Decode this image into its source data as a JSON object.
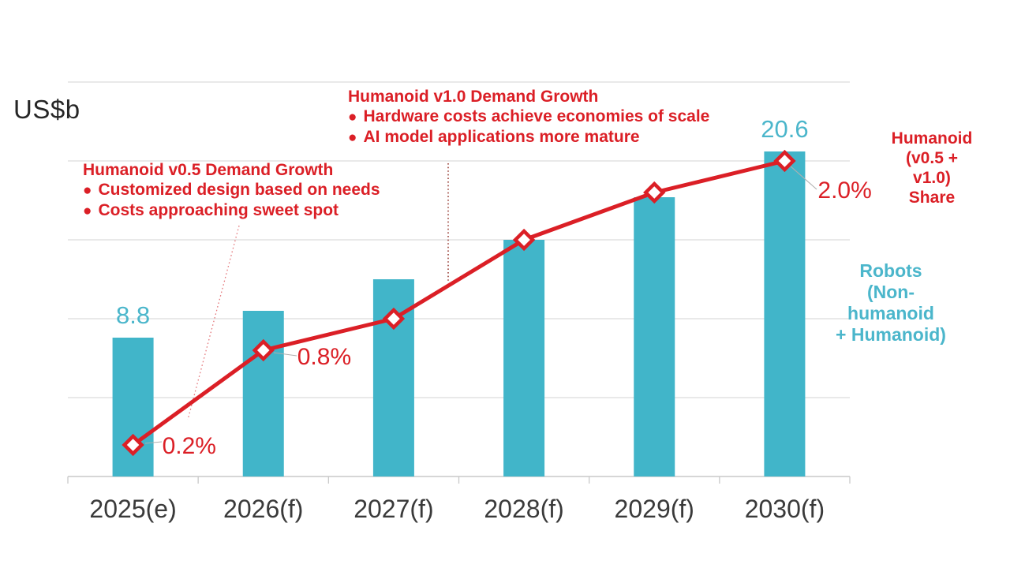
{
  "unit_label": "US$b",
  "annotations": {
    "v05": {
      "title": "Humanoid v0.5 Demand Growth",
      "bullets": [
        "Customized design based on needs",
        "Costs approaching sweet spot"
      ]
    },
    "v10": {
      "title": "Humanoid v1.0 Demand Growth",
      "bullets": [
        "Hardware costs achieve economies of scale",
        "AI model applications more mature"
      ]
    }
  },
  "legends": {
    "share": "Humanoid\n(v0.5 + v1.0)\nShare",
    "robots": "Robots\n(Non-humanoid\n+ Humanoid)"
  },
  "icons": {
    "bullet": "●",
    "line_marker": "diamond-marker"
  },
  "colors": {
    "bar_teal": "#41B5C9",
    "teal_text": "#4BB6CB",
    "line_red": "#DB1F26",
    "dark_red_dotted": "#9A4038",
    "light_red_dotted": "#E4777B",
    "gridline": "#DCDCDC",
    "axis": "#C9C9C9",
    "leader": "#B0B0B0",
    "axis_text": "#3A3A3A"
  },
  "chart_data": {
    "type": "bar",
    "subtype": "bar-line combo, dual axis",
    "title": "",
    "categories": [
      "2025(e)",
      "2026(f)",
      "2027(f)",
      "2028(f)",
      "2029(f)",
      "2030(f)"
    ],
    "series": [
      {
        "name": "Robots (Non-humanoid + Humanoid)",
        "type": "bar",
        "axis": "left",
        "unit": "US$b",
        "color": "#41B5C9",
        "values": [
          8.8,
          10.5,
          12.5,
          15.0,
          17.7,
          20.6
        ]
      },
      {
        "name": "Humanoid (v0.5 + v1.0) Share",
        "type": "line",
        "axis": "right",
        "unit": "%",
        "color": "#DB1F26",
        "values": [
          0.2,
          0.8,
          1.0,
          1.5,
          1.8,
          2.0
        ]
      }
    ],
    "left_axis": {
      "label": "US$b",
      "range": [
        0,
        25
      ],
      "grid_step": 5,
      "grid": true,
      "ticks_hidden": true
    },
    "right_axis": {
      "range": [
        0,
        2.5
      ],
      "visible": false
    },
    "bar_value_labels": [
      {
        "index": 0,
        "text": "8.8"
      },
      {
        "index": 5,
        "text": "20.6"
      }
    ],
    "share_value_labels": [
      {
        "index": 0,
        "text": "0.2%"
      },
      {
        "index": 1,
        "text": "0.8%"
      },
      {
        "index": 5,
        "text": "2.0%"
      }
    ],
    "legend_position": "right"
  }
}
